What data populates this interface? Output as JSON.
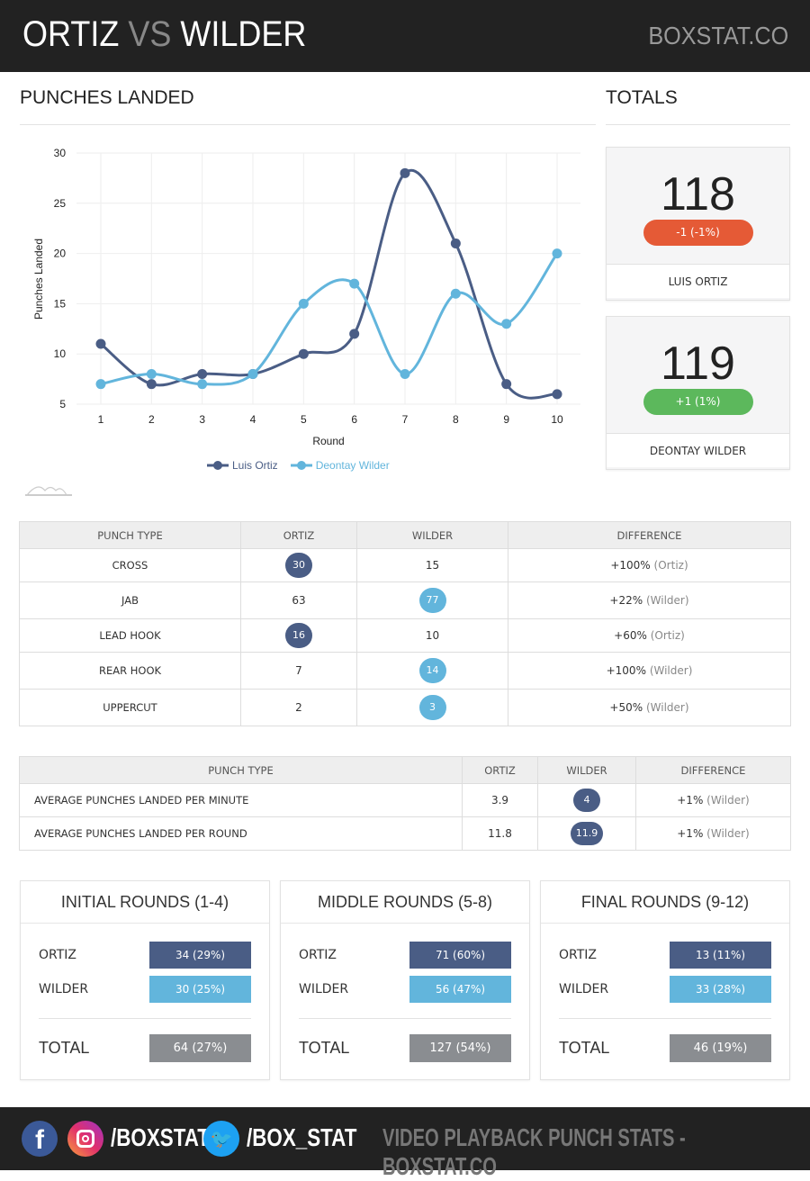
{
  "header": {
    "fighter1": "ORTIZ",
    "vs": "VS",
    "fighter2": "WILDER",
    "site": "BOXSTAT.CO"
  },
  "sections": {
    "punches_landed": "PUNCHES LANDED",
    "totals": "TOTALS"
  },
  "totals": [
    {
      "name": "LUIS ORTIZ",
      "total": "118",
      "change": "-1 (-1%)",
      "color": "#e55a36"
    },
    {
      "name": "DEONTAY WILDER",
      "total": "119",
      "change": "+1 (1%)",
      "color": "#5cb85c"
    }
  ],
  "chart_data": {
    "type": "line",
    "xlabel": "Round",
    "ylabel": "Punches Landed",
    "x": [
      1,
      2,
      3,
      4,
      5,
      6,
      7,
      8,
      9,
      10
    ],
    "ylim": [
      5,
      30
    ],
    "yticks": [
      5,
      10,
      15,
      20,
      25,
      30
    ],
    "series": [
      {
        "name": "Luis Ortiz",
        "color": "#4a5d85",
        "values": [
          11,
          7,
          8,
          8,
          10,
          12,
          28,
          21,
          7,
          6
        ]
      },
      {
        "name": "Deontay Wilder",
        "color": "#62b5dc",
        "values": [
          7,
          8,
          7,
          8,
          15,
          17,
          8,
          16,
          13,
          20
        ]
      }
    ],
    "legend": "bottom",
    "grid": true
  },
  "table1": {
    "headers": [
      "PUNCH TYPE",
      "ORTIZ",
      "WILDER",
      "DIFFERENCE"
    ],
    "rows": [
      {
        "type": "CROSS",
        "ortiz": "30",
        "wilder": "15",
        "diff": "+100%",
        "who": "(Ortiz)",
        "hl": "o"
      },
      {
        "type": "JAB",
        "ortiz": "63",
        "wilder": "77",
        "diff": "+22%",
        "who": "(Wilder)",
        "hl": "w"
      },
      {
        "type": "LEAD HOOK",
        "ortiz": "16",
        "wilder": "10",
        "diff": "+60%",
        "who": "(Ortiz)",
        "hl": "o"
      },
      {
        "type": "REAR HOOK",
        "ortiz": "7",
        "wilder": "14",
        "diff": "+100%",
        "who": "(Wilder)",
        "hl": "w"
      },
      {
        "type": "UPPERCUT",
        "ortiz": "2",
        "wilder": "3",
        "diff": "+50%",
        "who": "(Wilder)",
        "hl": "w"
      }
    ]
  },
  "table2": {
    "headers": [
      "PUNCH TYPE",
      "ORTIZ",
      "WILDER",
      "DIFFERENCE"
    ],
    "rows": [
      {
        "type": "AVERAGE PUNCHES LANDED PER MINUTE",
        "ortiz": "3.9",
        "wilder": "4",
        "diff": "+1%",
        "who": "(Wilder)"
      },
      {
        "type": "AVERAGE PUNCHES LANDED PER ROUND",
        "ortiz": "11.8",
        "wilder": "11.9",
        "diff": "+1%",
        "who": "(Wilder)"
      }
    ]
  },
  "cards": [
    {
      "title": "INITIAL ROUNDS (1-4)",
      "ortiz": "34 (29%)",
      "wilder": "30 (25%)",
      "total": "64 (27%)"
    },
    {
      "title": "MIDDLE ROUNDS (5-8)",
      "ortiz": "71 (60%)",
      "wilder": "56 (47%)",
      "total": "127 (54%)"
    },
    {
      "title": "FINAL ROUNDS (9-12)",
      "ortiz": "13 (11%)",
      "wilder": "33 (28%)",
      "total": "46 (19%)"
    }
  ],
  "labels": {
    "ortiz": "ORTIZ",
    "wilder": "WILDER",
    "total": "TOTAL"
  },
  "footer": {
    "instagram": "/BOXSTAT",
    "twitter": "/BOX_STAT",
    "tagline": "VIDEO PLAYBACK PUNCH STATS - BOXSTAT.CO"
  }
}
